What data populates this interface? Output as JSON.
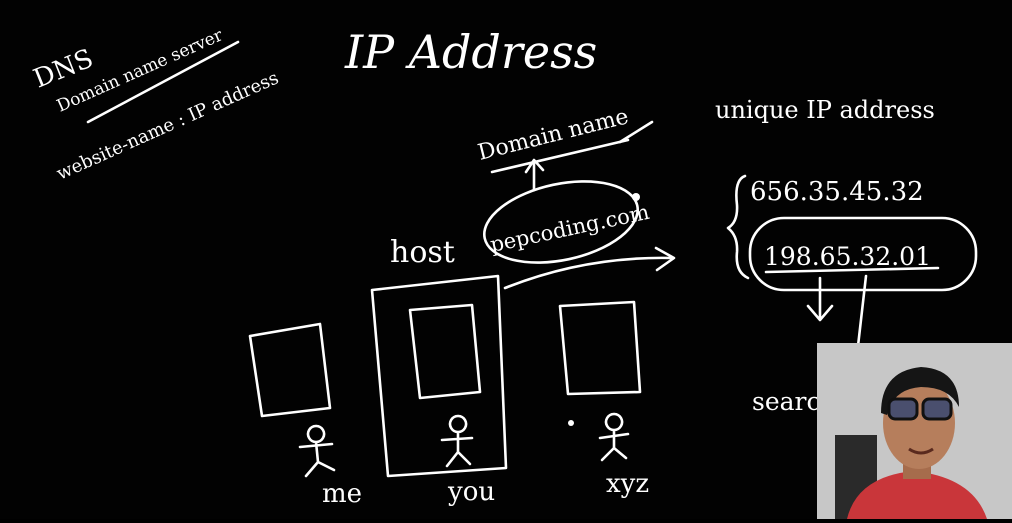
{
  "board": {
    "title": "IP Address",
    "dns": "DNS",
    "dns_full": "Domain name server",
    "website_name": "website-name : IP address",
    "domain_name": "Domain name",
    "domain_example": "pepcoding.com",
    "host": "host",
    "unique_ip": "unique IP address",
    "ip_1": "656.35.45.32",
    "ip_2": "198.65.32.01",
    "search": "search",
    "users": [
      "me",
      "you",
      "xyz"
    ]
  },
  "webcam": {
    "colors": {
      "wall": "#c7c7c7",
      "shirt": "#c9363a",
      "skin": "#b67e5c",
      "hair": "#151515"
    }
  }
}
